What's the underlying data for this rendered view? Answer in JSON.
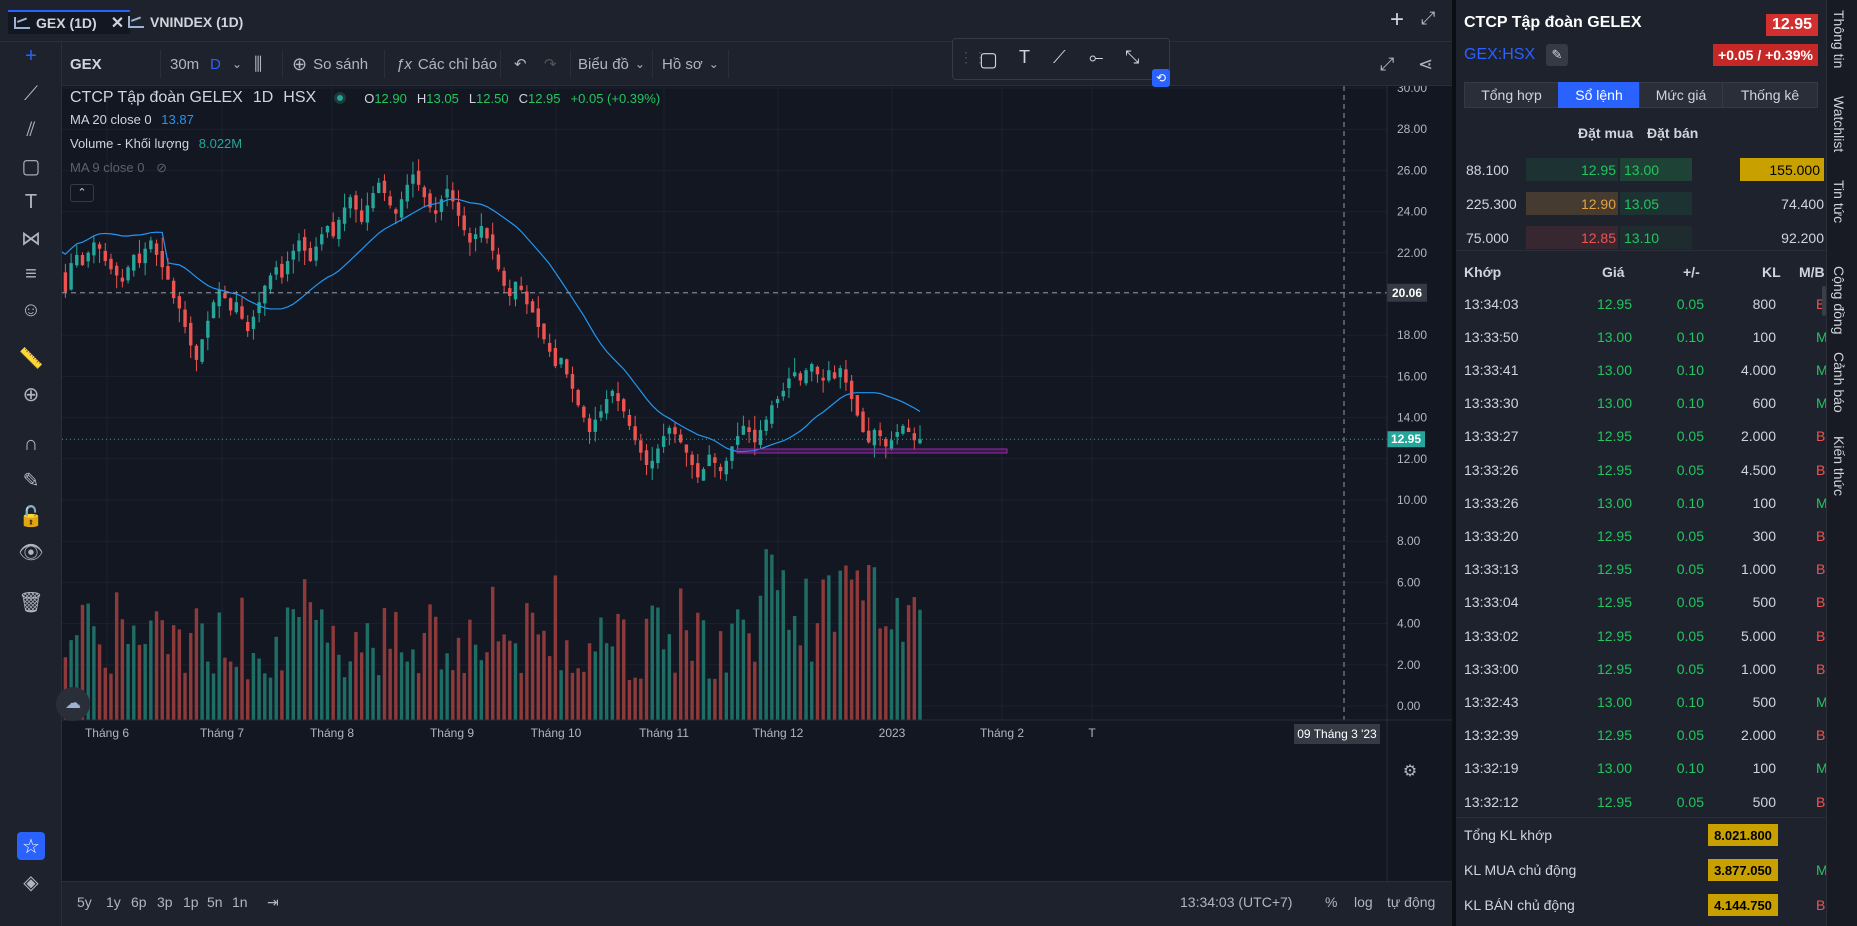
{
  "tabs": [
    {
      "label": "GEX (1D)",
      "active": true
    },
    {
      "label": "VNINDEX (1D)",
      "active": false
    }
  ],
  "toolbar": {
    "symbol": "GEX",
    "interval": "30m",
    "interval_d": "D",
    "compare": "So sánh",
    "indicators": "Các chỉ báo",
    "chart_type": "Biểu đồ",
    "profile": "Hồ sơ"
  },
  "legend": {
    "name": "CTCP Tập đoàn GELEX",
    "timeframe": "1D",
    "exchange": "HSX",
    "o_label": "O",
    "o": "12.90",
    "h_label": "H",
    "h": "13.05",
    "l_label": "L",
    "l": "12.50",
    "c_label": "C",
    "c": "12.95",
    "change": "+0.05 (+0.39%)",
    "ma20_label": "MA 20 close 0",
    "ma20_value": "13.87",
    "vol_label": "Volume - Khối lượng",
    "vol_value": "8.022M",
    "ma9_label": "MA 9 close 0"
  },
  "crosshair": {
    "price_label": "20.06",
    "date_label": "09 Tháng 3 '23"
  },
  "last_price_label": "12.95",
  "colors": {
    "up": "#26a69a",
    "down": "#ef5350",
    "ma": "#2196f3",
    "accent": "#2962ff"
  },
  "chart_data": {
    "type": "candlestick",
    "ylim": [
      0,
      30
    ],
    "y_ticks": [
      "30.00",
      "28.00",
      "26.00",
      "24.00",
      "22.00",
      "20.00",
      "18.00",
      "16.00",
      "14.00",
      "12.00",
      "10.00",
      "8.00",
      "6.00",
      "4.00",
      "2.00",
      "0.00"
    ],
    "x_ticks": [
      "Tháng 6",
      "Tháng 7",
      "Tháng 8",
      "Tháng 9",
      "Tháng 10",
      "Tháng 11",
      "Tháng 12",
      "2023",
      "Tháng 2",
      "T"
    ],
    "close": [
      20.3,
      20.9,
      20.1,
      21.5,
      21.9,
      21.4,
      22.0,
      22.5,
      22.2,
      21.6,
      21.2,
      20.9,
      20.6,
      21.3,
      21.9,
      21.5,
      22.2,
      22.6,
      21.9,
      21.3,
      20.7,
      19.8,
      19.3,
      18.4,
      17.5,
      16.8,
      17.8,
      18.7,
      19.6,
      20.2,
      19.8,
      19.2,
      19.6,
      18.8,
      18.2,
      18.9,
      19.6,
      20.4,
      20.9,
      21.3,
      20.8,
      21.6,
      22.1,
      22.6,
      22.1,
      21.6,
      22.3,
      22.9,
      23.3,
      22.8,
      23.6,
      24.2,
      24.7,
      24.1,
      23.5,
      24.3,
      24.9,
      25.4,
      24.9,
      24.3,
      23.9,
      24.6,
      25.3,
      25.8,
      25.3,
      24.7,
      24.2,
      23.9,
      24.6,
      25.1,
      24.5,
      23.8,
      23.1,
      22.5,
      22.9,
      23.3,
      22.7,
      22.1,
      21.2,
      20.4,
      19.9,
      20.6,
      20.2,
      19.5,
      19.1,
      18.4,
      17.8,
      17.2,
      16.5,
      16.9,
      16.1,
      15.4,
      14.6,
      14.0,
      13.3,
      13.9,
      14.3,
      14.9,
      15.3,
      14.8,
      14.3,
      13.6,
      12.9,
      12.3,
      11.7,
      11.9,
      12.5,
      13.1,
      13.5,
      13.2,
      12.8,
      12.3,
      11.7,
      11.1,
      11.5,
      12.2,
      11.8,
      11.4,
      11.9,
      12.6,
      13.1,
      13.6,
      13.3,
      12.8,
      13.4,
      13.9,
      14.6,
      14.9,
      15.3,
      15.9,
      16.2,
      15.8,
      16.3,
      16.6,
      16.1,
      15.8,
      16.3,
      15.9,
      16.4,
      15.7,
      14.9,
      14.1,
      13.3,
      12.8,
      13.4,
      13.1,
      12.6,
      12.9,
      13.3,
      13.6,
      13.3,
      12.9,
      12.95
    ]
  },
  "bottom": {
    "ranges": [
      "5y",
      "1y",
      "6p",
      "3p",
      "1p",
      "5n",
      "1n"
    ],
    "time": "13:34:03 (UTC+7)",
    "pct": "%",
    "log": "log",
    "auto": "tự động"
  },
  "right_panel": {
    "title": "CTCP Tập đoàn GELEX",
    "price": "12.95",
    "ticker": "GEX:HSX",
    "change": "+0.05 / +0.39%",
    "subtabs": [
      "Tổng hợp",
      "Sổ lệnh",
      "Mức giá",
      "Thống kê"
    ],
    "active_subtab": "Sổ lệnh",
    "ob_headers": {
      "buy": "Đặt mua",
      "sell": "Đặt bán"
    },
    "orderbook": [
      {
        "buy_vol": "88.100",
        "buy_price": "12.95",
        "sell_price": "13.00",
        "sell_vol": "155.000"
      },
      {
        "buy_vol": "225.300",
        "buy_price": "12.90",
        "sell_price": "13.05",
        "sell_vol": "74.400"
      },
      {
        "buy_vol": "75.000",
        "buy_price": "12.85",
        "sell_price": "13.10",
        "sell_vol": "92.200"
      }
    ],
    "trade_headers": {
      "time": "Khớp",
      "price": "Giá",
      "change": "+/-",
      "volume": "KL",
      "side": "M/B"
    },
    "trades": [
      {
        "time": "13:34:03",
        "price": "12.95",
        "change": "0.05",
        "volume": "800",
        "side": "B"
      },
      {
        "time": "13:33:50",
        "price": "13.00",
        "change": "0.10",
        "volume": "100",
        "side": "M"
      },
      {
        "time": "13:33:41",
        "price": "13.00",
        "change": "0.10",
        "volume": "4.000",
        "side": "M"
      },
      {
        "time": "13:33:30",
        "price": "13.00",
        "change": "0.10",
        "volume": "600",
        "side": "M"
      },
      {
        "time": "13:33:27",
        "price": "12.95",
        "change": "0.05",
        "volume": "2.000",
        "side": "B"
      },
      {
        "time": "13:33:26",
        "price": "12.95",
        "change": "0.05",
        "volume": "4.500",
        "side": "B"
      },
      {
        "time": "13:33:26",
        "price": "13.00",
        "change": "0.10",
        "volume": "100",
        "side": "M"
      },
      {
        "time": "13:33:20",
        "price": "12.95",
        "change": "0.05",
        "volume": "300",
        "side": "B"
      },
      {
        "time": "13:33:13",
        "price": "12.95",
        "change": "0.05",
        "volume": "1.000",
        "side": "B"
      },
      {
        "time": "13:33:04",
        "price": "12.95",
        "change": "0.05",
        "volume": "500",
        "side": "B"
      },
      {
        "time": "13:33:02",
        "price": "12.95",
        "change": "0.05",
        "volume": "5.000",
        "side": "B"
      },
      {
        "time": "13:33:00",
        "price": "12.95",
        "change": "0.05",
        "volume": "1.000",
        "side": "B"
      },
      {
        "time": "13:32:43",
        "price": "13.00",
        "change": "0.10",
        "volume": "500",
        "side": "M"
      },
      {
        "time": "13:32:39",
        "price": "12.95",
        "change": "0.05",
        "volume": "2.000",
        "side": "B"
      },
      {
        "time": "13:32:19",
        "price": "13.00",
        "change": "0.10",
        "volume": "100",
        "side": "M"
      },
      {
        "time": "13:32:12",
        "price": "12.95",
        "change": "0.05",
        "volume": "500",
        "side": "B"
      }
    ],
    "summary": [
      {
        "label": "Tổng KL khớp",
        "value": "8.021.800",
        "side": ""
      },
      {
        "label": "KL MUA chủ động",
        "value": "3.877.050",
        "side": "M"
      },
      {
        "label": "KL BÁN chủ động",
        "value": "4.144.750",
        "side": "B"
      }
    ]
  },
  "side_tabs": [
    "Thông tin",
    "Watchlist",
    "Tin tức",
    "Cộng đồng",
    "Cảnh báo",
    "Kiến thức"
  ]
}
